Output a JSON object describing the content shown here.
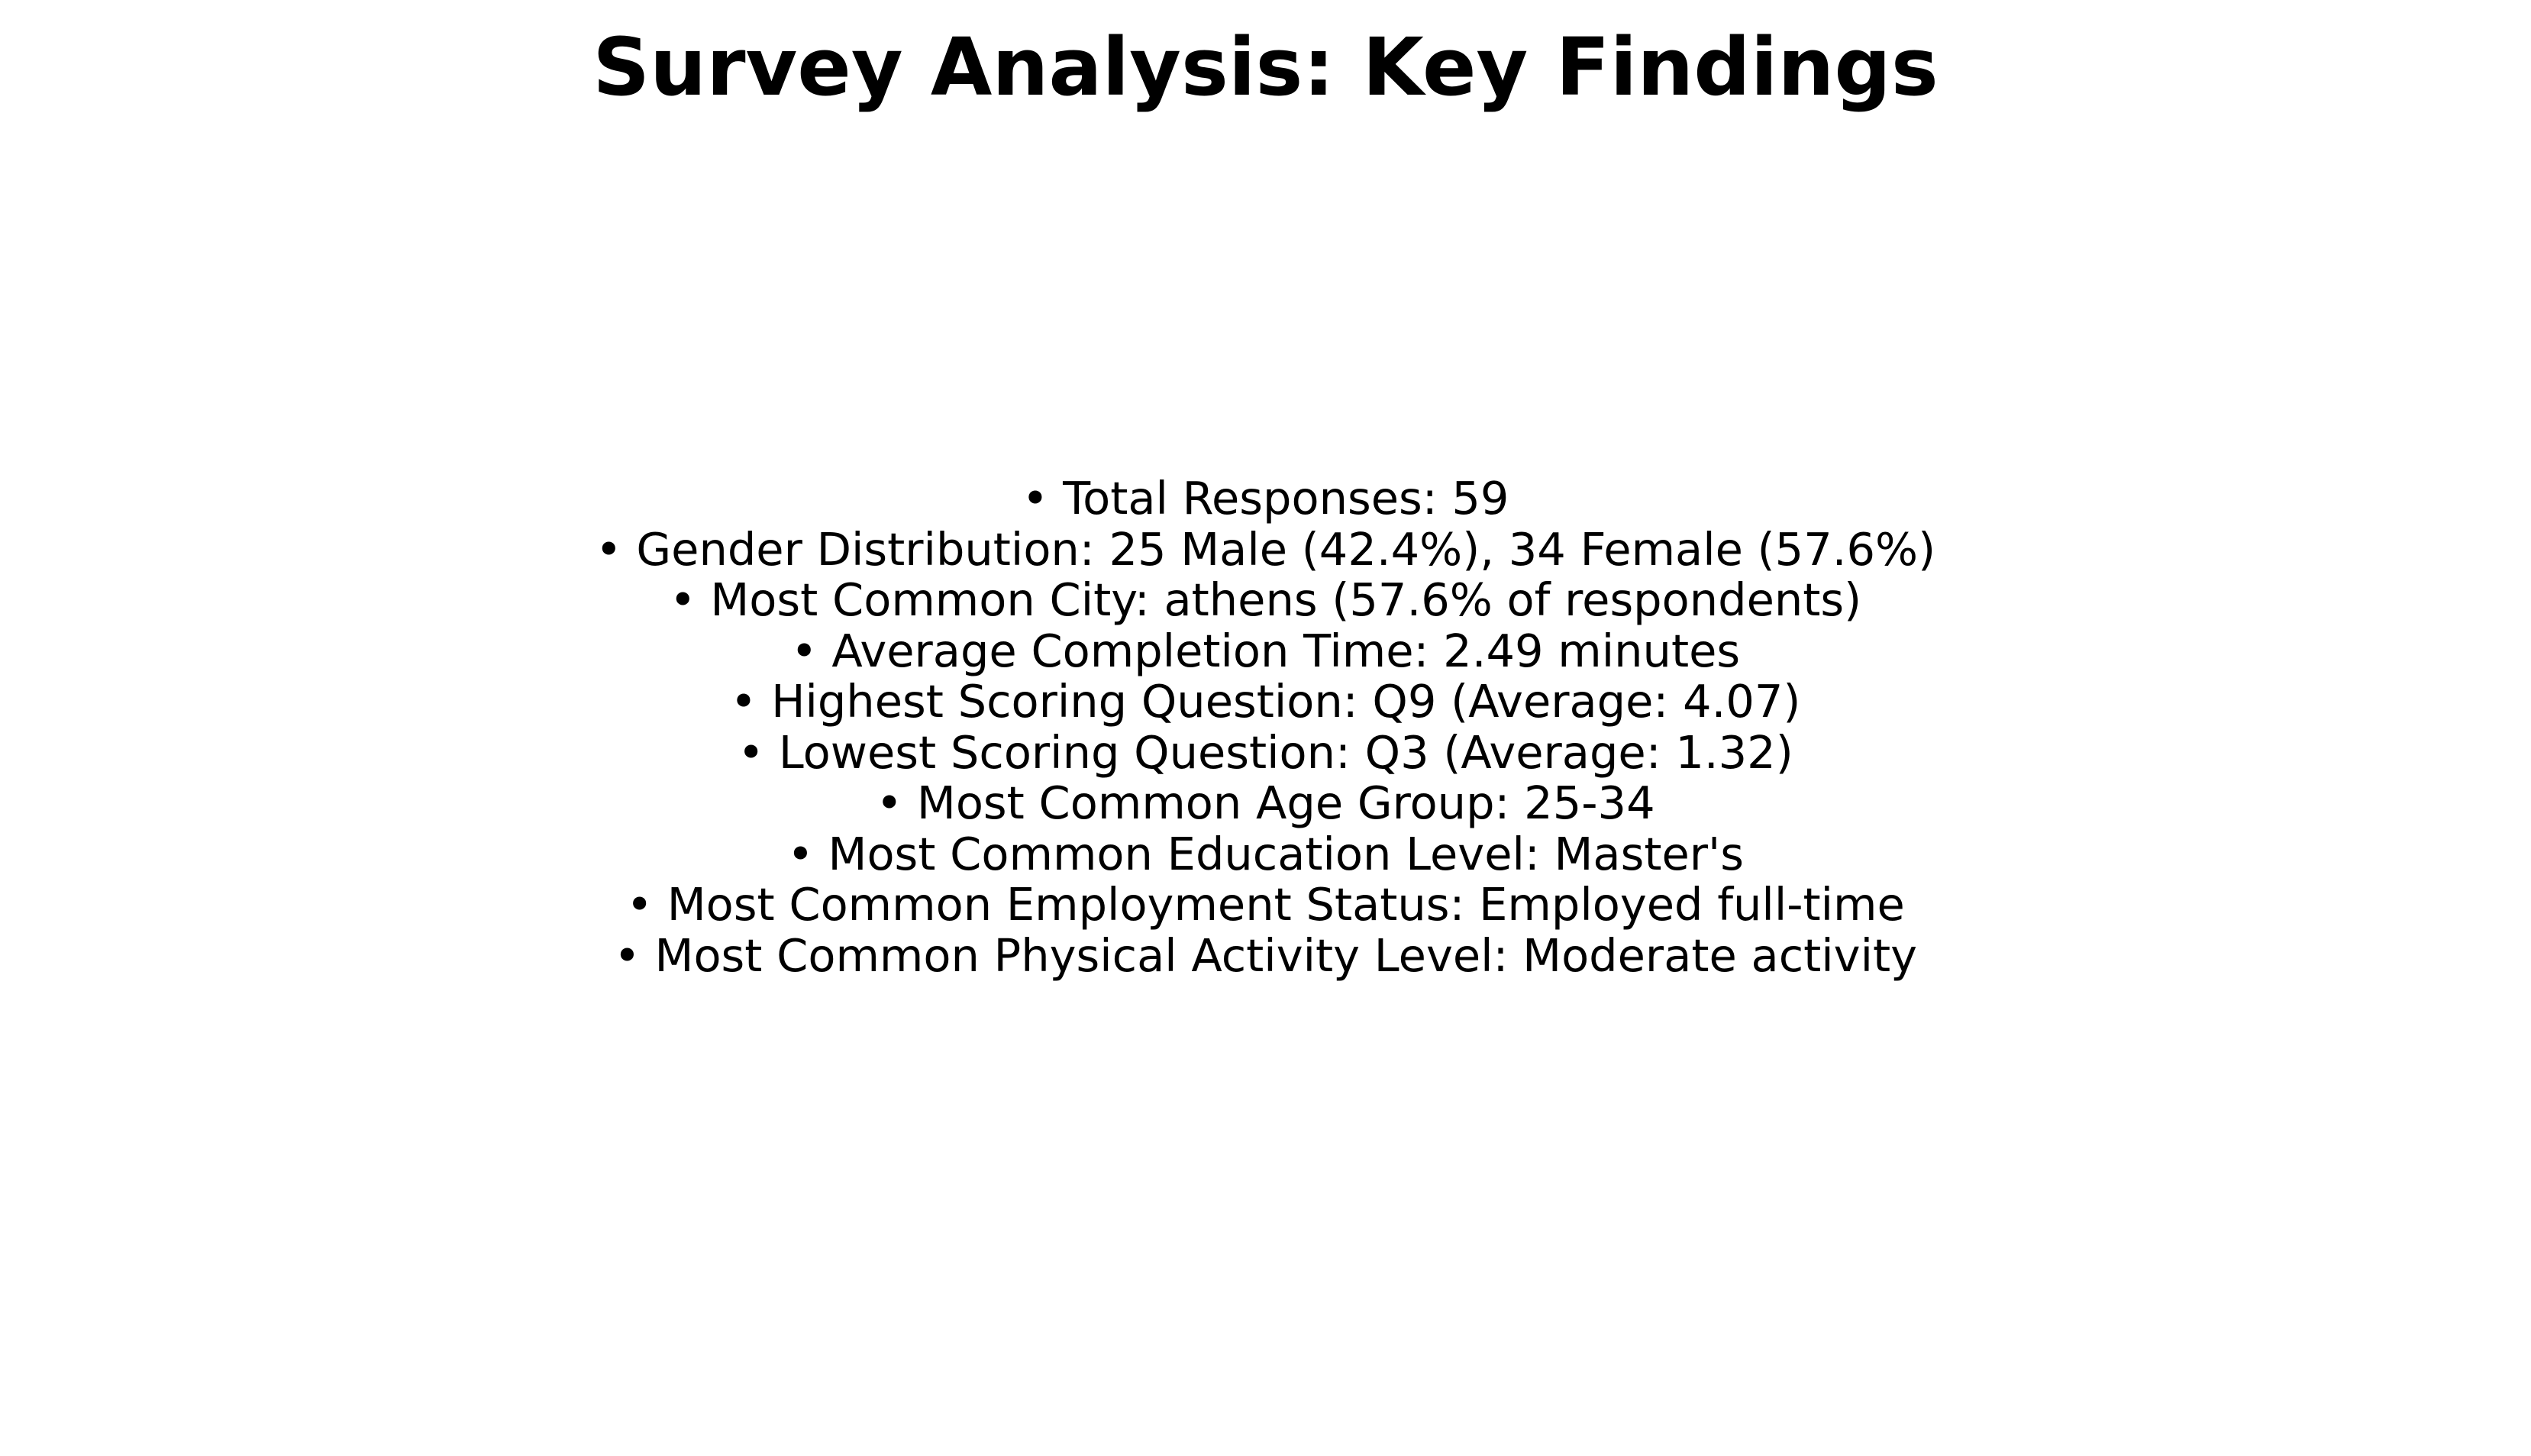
{
  "title": "Survey Analysis: Key Findings",
  "findings": [
    "• Total Responses: 59",
    "• Gender Distribution: 25 Male (42.4%), 34 Female (57.6%)",
    "• Most Common City: athens (57.6% of respondents)",
    "• Average Completion Time: 2.49 minutes",
    "• Highest Scoring Question: Q9 (Average: 4.07)",
    "• Lowest Scoring Question: Q3 (Average: 1.32)",
    "• Most Common Age Group: 25-34",
    "• Most Common Education Level: Master's",
    "• Most Common Employment Status: Employed full-time",
    "• Most Common Physical Activity Level: Moderate activity"
  ]
}
